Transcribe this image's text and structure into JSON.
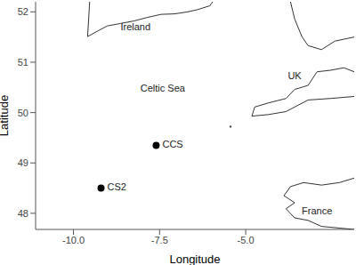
{
  "chart_data": {
    "type": "scatter",
    "x_label": "Longitude",
    "y_label": "Latitude",
    "xlim": [
      -11.1,
      -1.85
    ],
    "ylim": [
      47.68,
      52.2
    ],
    "xticks": [
      {
        "value": -10,
        "label": "-10.0"
      },
      -7.5,
      {
        "value": -5,
        "label": "-5.0"
      }
    ],
    "yticks": [
      48,
      49,
      50,
      51,
      52
    ],
    "grid": false,
    "color": "#000000",
    "marker": "circle",
    "points": [
      {
        "name": "CCS",
        "x": -7.6,
        "y": 49.35
      },
      {
        "name": "CS2",
        "x": -9.2,
        "y": 48.5
      }
    ],
    "annotations": [
      {
        "text": "Ireland",
        "x": -8.2,
        "y": 51.68
      },
      {
        "text": "UK",
        "x": -3.58,
        "y": 50.72
      },
      {
        "text": "France",
        "x": -2.93,
        "y": 48.04
      },
      {
        "text": "Celtic Sea",
        "x": -7.41,
        "y": 50.46
      }
    ],
    "coastlines": [
      [
        [
          -9.53,
          52.2
        ],
        [
          -9.59,
          51.51
        ],
        [
          -9.27,
          51.63
        ],
        [
          -9.02,
          51.72
        ],
        [
          -8.63,
          51.77
        ],
        [
          -8.24,
          51.82
        ],
        [
          -7.85,
          51.89
        ],
        [
          -7.46,
          51.95
        ],
        [
          -7.07,
          51.96
        ],
        [
          -6.68,
          52.0
        ],
        [
          -6.42,
          52.04
        ],
        [
          -6.04,
          52.12
        ],
        [
          -5.96,
          52.2
        ]
      ],
      [
        [
          -3.7,
          52.2
        ],
        [
          -3.58,
          51.86
        ],
        [
          -3.37,
          51.51
        ],
        [
          -3.19,
          51.33
        ],
        [
          -2.8,
          51.25
        ],
        [
          -2.41,
          51.42
        ],
        [
          -1.85,
          51.5
        ]
      ],
      [
        [
          -1.85,
          50.81
        ],
        [
          -2.15,
          50.89
        ],
        [
          -2.54,
          50.84
        ],
        [
          -2.93,
          50.81
        ],
        [
          -3.19,
          50.54
        ],
        [
          -3.58,
          50.46
        ],
        [
          -3.83,
          50.28
        ],
        [
          -4.35,
          50.19
        ],
        [
          -4.74,
          50.11
        ],
        [
          -4.82,
          49.93
        ],
        [
          -4.35,
          49.96
        ],
        [
          -3.83,
          50.02
        ],
        [
          -3.19,
          50.25
        ],
        [
          -2.54,
          50.28
        ],
        [
          -1.85,
          50.32
        ]
      ],
      [
        [
          -5.46,
          49.71
        ],
        [
          -5.42,
          49.71
        ],
        [
          -5.44,
          49.74
        ],
        [
          -5.46,
          49.71
        ]
      ],
      [
        [
          -1.85,
          48.7
        ],
        [
          -2.28,
          48.61
        ],
        [
          -2.8,
          48.56
        ],
        [
          -3.32,
          48.61
        ],
        [
          -3.7,
          48.53
        ],
        [
          -3.89,
          48.35
        ],
        [
          -3.58,
          48.21
        ],
        [
          -3.83,
          48.09
        ],
        [
          -3.58,
          47.91
        ],
        [
          -3.19,
          47.86
        ],
        [
          -2.8,
          47.74
        ],
        [
          -1.85,
          47.68
        ]
      ]
    ]
  }
}
